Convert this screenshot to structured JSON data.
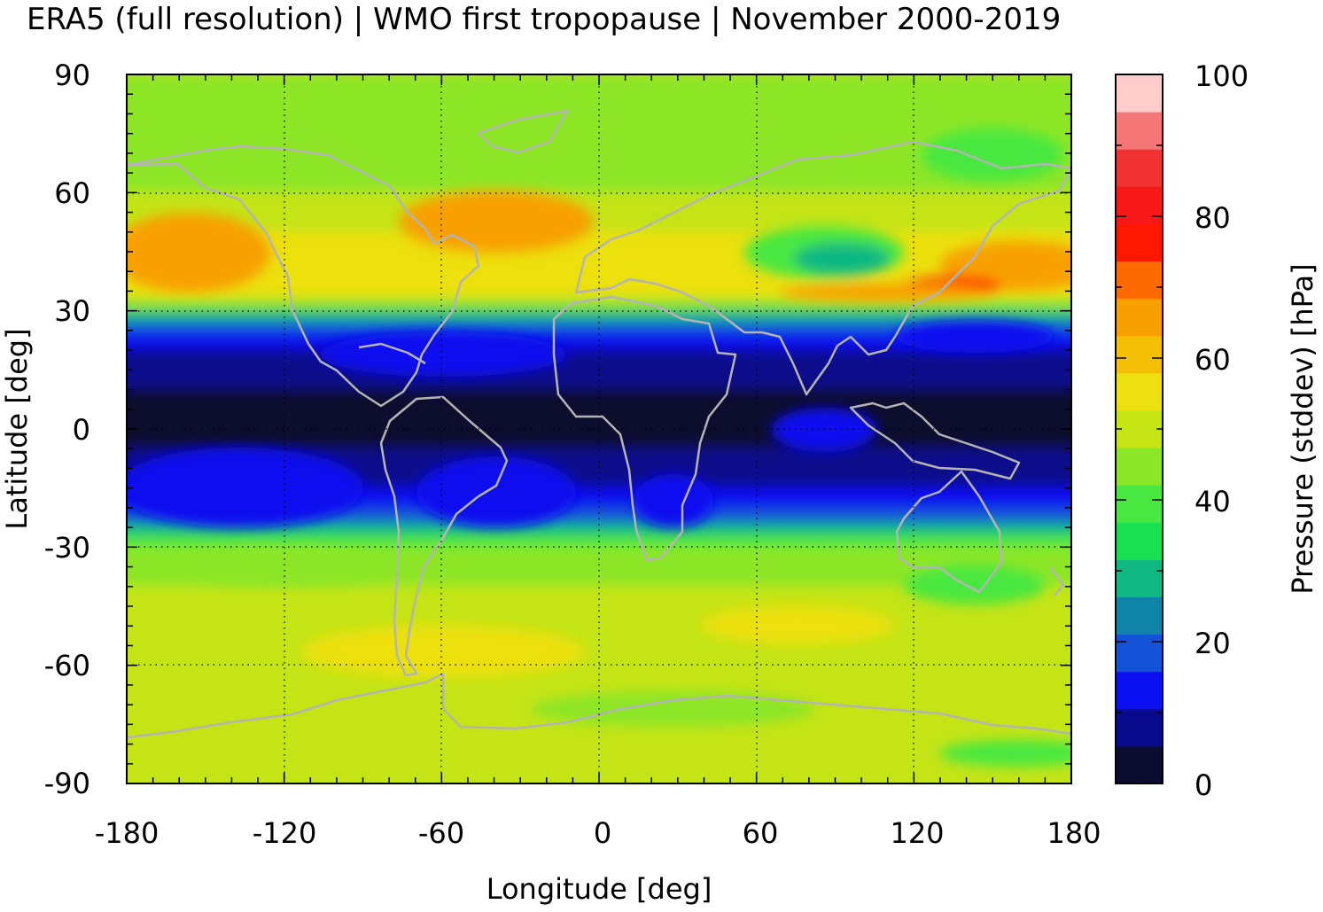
{
  "title": "ERA5 (full resolution) | WMO first tropopause | November 2000-2019",
  "xaxis": {
    "label": "Longitude [deg]",
    "range": [
      -180,
      180
    ],
    "ticks": [
      "-180",
      "-120",
      "-60",
      "0",
      "60",
      "120",
      "180"
    ]
  },
  "yaxis": {
    "label": "Latitude [deg]",
    "range": [
      -90,
      90
    ],
    "ticks": [
      "90",
      "60",
      "30",
      "0",
      "-30",
      "-60",
      "-90"
    ]
  },
  "colorbar": {
    "label": "Pressure (stddev) [hPa]",
    "range": [
      0,
      100
    ],
    "ticks": [
      "100",
      "80",
      "60",
      "40",
      "20",
      "0"
    ],
    "colors": [
      "#0c0c2e",
      "#0a0a8c",
      "#0a10f0",
      "#1452d8",
      "#0f84a8",
      "#10b882",
      "#18e050",
      "#48e840",
      "#8ce628",
      "#c4e414",
      "#ece010",
      "#f4c006",
      "#f8a002",
      "#fc6a00",
      "#ff1800",
      "#f81818",
      "#f03232",
      "#f47676",
      "#ffcccc"
    ]
  },
  "chart_data": {
    "type": "heatmap",
    "title": "ERA5 (full resolution) | WMO first tropopause | November 2000-2019",
    "xlabel": "Longitude [deg]",
    "ylabel": "Latitude [deg]",
    "colorbar_label": "Pressure (stddev) [hPa]",
    "xlim": [
      -180,
      180
    ],
    "ylim": [
      -90,
      90
    ],
    "clim": [
      0,
      100
    ],
    "grid": true,
    "zonal_profile": {
      "lat": [
        90,
        75,
        60,
        50,
        40,
        33,
        30,
        27,
        24,
        20,
        15,
        10,
        5,
        0,
        -5,
        -10,
        -15,
        -20,
        -24,
        -27,
        -30,
        -33,
        -40,
        -50,
        -60,
        -70,
        -80,
        -90
      ],
      "stddev_hPa": [
        46,
        44,
        46,
        56,
        58,
        50,
        40,
        22,
        14,
        10,
        6,
        5,
        5,
        5,
        5,
        6,
        10,
        14,
        22,
        38,
        44,
        46,
        48,
        52,
        52,
        50,
        48,
        48
      ]
    },
    "features": [
      {
        "type": "maximum",
        "lon": 135,
        "lat": 37,
        "value": 80
      },
      {
        "type": "minimum",
        "lon": 85,
        "lat": 44,
        "value": 30
      },
      {
        "type": "minimum",
        "lon": 30,
        "lat": 5,
        "value": 6
      }
    ]
  }
}
